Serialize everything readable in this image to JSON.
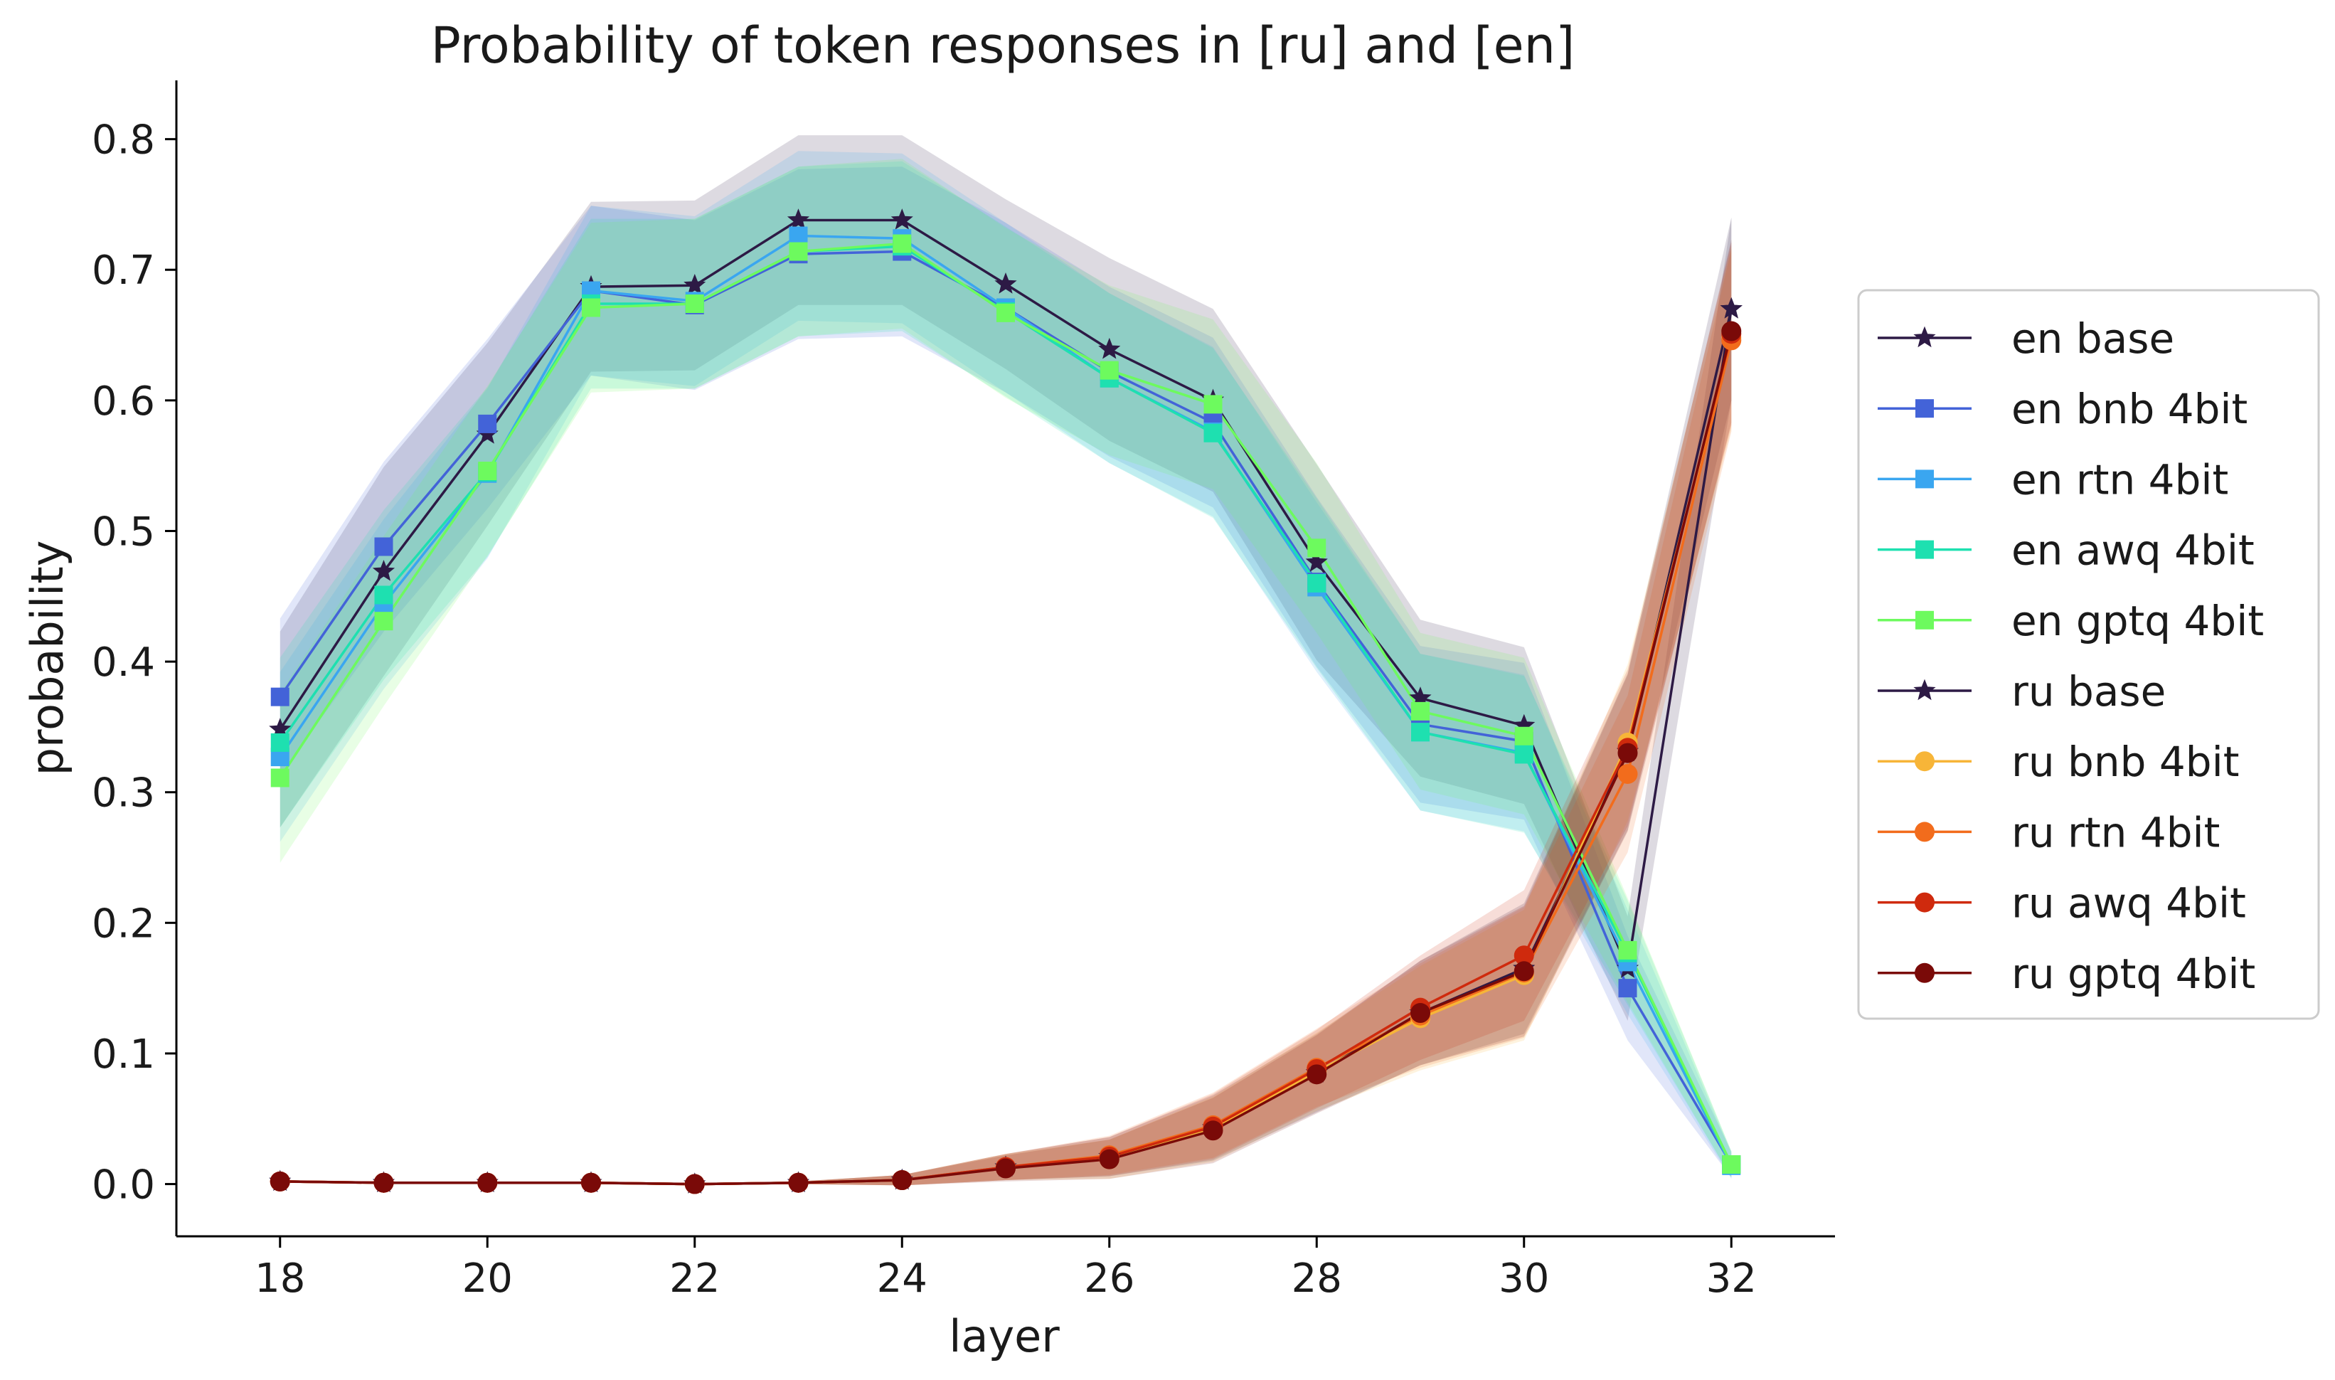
{
  "chart_data": {
    "type": "line",
    "title": "Probability of token responses in [ru] and [en]",
    "xlabel": "layer",
    "ylabel": "probability",
    "xlim": [
      17,
      33
    ],
    "ylim": [
      -0.04,
      0.845
    ],
    "xticks": [
      18,
      20,
      22,
      24,
      26,
      28,
      30,
      32
    ],
    "yticks": [
      0.0,
      0.1,
      0.2,
      0.3,
      0.4,
      0.5,
      0.6,
      0.7,
      0.8
    ],
    "xtick_labels": [
      "18",
      "20",
      "22",
      "24",
      "26",
      "28",
      "30",
      "32"
    ],
    "ytick_labels": [
      "0.0",
      "0.1",
      "0.2",
      "0.3",
      "0.4",
      "0.5",
      "0.6",
      "0.7",
      "0.8"
    ],
    "grid": false,
    "legend_position": "outside-right",
    "x": [
      18,
      19,
      20,
      21,
      22,
      23,
      24,
      25,
      26,
      27,
      28,
      29,
      30,
      31,
      32
    ],
    "series": [
      {
        "name": "en base",
        "color": "#2d1a45",
        "marker": "star",
        "values": [
          0.348,
          0.469,
          0.574,
          0.687,
          0.688,
          0.738,
          0.738,
          0.689,
          0.639,
          0.6,
          0.476,
          0.372,
          0.351,
          0.165,
          0.67
        ],
        "band": [
          0.075,
          0.08,
          0.07,
          0.065,
          0.065,
          0.065,
          0.065,
          0.065,
          0.07,
          0.07,
          0.075,
          0.06,
          0.06,
          0.04,
          0.07
        ]
      },
      {
        "name": "en bnb 4bit",
        "color": "#4363d8",
        "marker": "square",
        "values": [
          0.373,
          0.488,
          0.582,
          0.684,
          0.673,
          0.712,
          0.714,
          0.671,
          0.622,
          0.583,
          0.461,
          0.352,
          0.339,
          0.15,
          0.015
        ],
        "band": [
          0.06,
          0.065,
          0.065,
          0.065,
          0.065,
          0.065,
          0.065,
          0.065,
          0.065,
          0.065,
          0.065,
          0.06,
          0.06,
          0.04,
          0.01
        ]
      },
      {
        "name": "en rtn 4bit",
        "color": "#3aa6f0",
        "marker": "square",
        "values": [
          0.327,
          0.444,
          0.544,
          0.684,
          0.676,
          0.726,
          0.724,
          0.671,
          0.617,
          0.576,
          0.457,
          0.346,
          0.33,
          0.17,
          0.014
        ],
        "band": [
          0.065,
          0.065,
          0.065,
          0.065,
          0.065,
          0.065,
          0.065,
          0.065,
          0.065,
          0.065,
          0.065,
          0.06,
          0.06,
          0.04,
          0.01
        ]
      },
      {
        "name": "en awq 4bit",
        "color": "#1ee0b0",
        "marker": "square",
        "values": [
          0.338,
          0.451,
          0.545,
          0.674,
          0.674,
          0.714,
          0.718,
          0.668,
          0.617,
          0.575,
          0.46,
          0.346,
          0.329,
          0.177,
          0.015
        ],
        "band": [
          0.065,
          0.065,
          0.065,
          0.065,
          0.065,
          0.065,
          0.065,
          0.065,
          0.065,
          0.065,
          0.065,
          0.06,
          0.06,
          0.04,
          0.01
        ]
      },
      {
        "name": "en gptq 4bit",
        "color": "#6dfa5e",
        "marker": "square",
        "values": [
          0.311,
          0.431,
          0.546,
          0.671,
          0.674,
          0.714,
          0.72,
          0.667,
          0.623,
          0.597,
          0.487,
          0.362,
          0.343,
          0.179,
          0.015
        ],
        "band": [
          0.065,
          0.065,
          0.065,
          0.065,
          0.065,
          0.065,
          0.065,
          0.065,
          0.065,
          0.065,
          0.065,
          0.06,
          0.06,
          0.04,
          0.01
        ]
      },
      {
        "name": "ru base",
        "color": "#2d1a45",
        "marker": "star",
        "values": [
          0.002,
          0.001,
          0.001,
          0.001,
          0.0,
          0.001,
          0.003,
          0.013,
          0.021,
          0.043,
          0.085,
          0.131,
          0.165,
          0.331,
          0.67
        ],
        "band": [
          0.001,
          0.001,
          0.001,
          0.001,
          0.001,
          0.001,
          0.004,
          0.01,
          0.015,
          0.025,
          0.03,
          0.04,
          0.05,
          0.06,
          0.07
        ]
      },
      {
        "name": "ru bnb 4bit",
        "color": "#f7b538",
        "marker": "circle",
        "values": [
          0.002,
          0.001,
          0.001,
          0.001,
          0.0,
          0.001,
          0.003,
          0.013,
          0.019,
          0.042,
          0.086,
          0.127,
          0.16,
          0.338,
          0.648
        ],
        "band": [
          0.001,
          0.001,
          0.001,
          0.001,
          0.001,
          0.001,
          0.004,
          0.01,
          0.015,
          0.025,
          0.03,
          0.04,
          0.05,
          0.06,
          0.07
        ]
      },
      {
        "name": "ru rtn 4bit",
        "color": "#f26c1c",
        "marker": "circle",
        "values": [
          0.002,
          0.001,
          0.001,
          0.001,
          0.0,
          0.001,
          0.003,
          0.013,
          0.022,
          0.045,
          0.089,
          0.129,
          0.162,
          0.314,
          0.646
        ],
        "band": [
          0.001,
          0.001,
          0.001,
          0.001,
          0.001,
          0.001,
          0.004,
          0.01,
          0.015,
          0.025,
          0.03,
          0.04,
          0.05,
          0.06,
          0.07
        ]
      },
      {
        "name": "ru awq 4bit",
        "color": "#cf2a0d",
        "marker": "circle",
        "values": [
          0.002,
          0.001,
          0.001,
          0.001,
          0.0,
          0.001,
          0.003,
          0.013,
          0.021,
          0.044,
          0.088,
          0.135,
          0.175,
          0.334,
          0.651
        ],
        "band": [
          0.001,
          0.001,
          0.001,
          0.001,
          0.001,
          0.001,
          0.004,
          0.01,
          0.015,
          0.025,
          0.03,
          0.04,
          0.05,
          0.06,
          0.07
        ]
      },
      {
        "name": "ru gptq 4bit",
        "color": "#7a0a08",
        "marker": "circle",
        "values": [
          0.002,
          0.001,
          0.001,
          0.001,
          0.0,
          0.001,
          0.003,
          0.012,
          0.019,
          0.041,
          0.084,
          0.131,
          0.163,
          0.33,
          0.653
        ],
        "band": [
          0.001,
          0.001,
          0.001,
          0.001,
          0.001,
          0.001,
          0.004,
          0.01,
          0.015,
          0.025,
          0.03,
          0.04,
          0.05,
          0.06,
          0.07
        ]
      }
    ]
  }
}
